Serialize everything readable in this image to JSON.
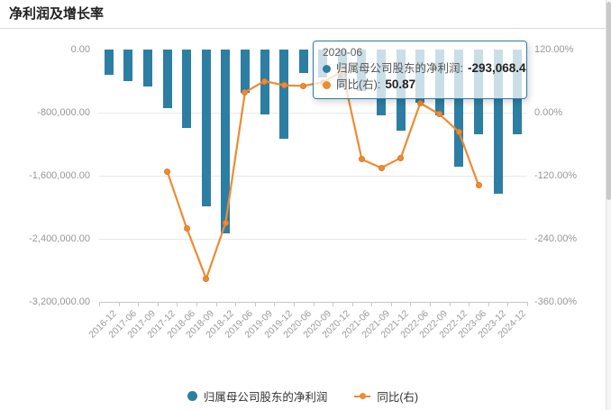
{
  "page": {
    "title": "净利润及增长率"
  },
  "colors": {
    "bar": "#2d7ea3",
    "line": "#ef8b31",
    "grid": "#e8e8e8",
    "axis": "#c9c9c9",
    "label": "#979797"
  },
  "tooltip": {
    "title": "2020-06",
    "rows": [
      {
        "color": "#2d7ea3",
        "label": "归属母公司股东的净利润:",
        "value": "-293,068.4"
      },
      {
        "color": "#ef8b31",
        "label": "同比(右):",
        "value": "50.87"
      }
    ]
  },
  "legend": [
    {
      "type": "bar",
      "color": "#2d7ea3",
      "label": "归属母公司股东的净利润"
    },
    {
      "type": "line",
      "color": "#ef8b31",
      "label": "同比(右)"
    }
  ],
  "chart_data": {
    "type": "bar",
    "title": "净利润及增长率",
    "categories": [
      "2016-12",
      "2017-06",
      "2017-09",
      "2017-12",
      "2018-06",
      "2018-09",
      "2018-12",
      "2019-06",
      "2019-09",
      "2019-12",
      "2020-06",
      "2020-09",
      "2020-12",
      "2021-06",
      "2021-09",
      "2021-12",
      "2022-06",
      "2022-09",
      "2022-12",
      "2023-06",
      "2023-12",
      "2024-12"
    ],
    "series": [
      {
        "name": "归属母公司股东的净利润",
        "type": "bar",
        "axis": "left",
        "color": "#2d7ea3",
        "values": [
          -322000,
          -400000,
          -465000,
          -745000,
          -995000,
          -1990000,
          -2335000,
          -553000,
          -820000,
          -1128000,
          -293068.4,
          -350000,
          -480000,
          -520000,
          -835000,
          -1030000,
          -671000,
          -835000,
          -1482000,
          -1074000,
          -1833000,
          -1074000
        ]
      },
      {
        "name": "同比(右)",
        "type": "line",
        "axis": "right",
        "color": "#ef8b31",
        "values": [
          null,
          null,
          null,
          -112,
          -220,
          -316,
          -210,
          39,
          60,
          52,
          50.87,
          58,
          79,
          -89,
          -105,
          -86,
          18,
          -3,
          -37,
          -138,
          null,
          null
        ]
      }
    ],
    "left_axis": {
      "ticks": [
        "0.00",
        "-800,000.00",
        "-1,600,000.00",
        "-2,400,000.00",
        "-3,200,000.00"
      ],
      "min": -3200000,
      "max": 0
    },
    "right_axis": {
      "ticks": [
        "120.00%",
        "0.00%",
        "-120.00%",
        "-240.00%",
        "-360.00%"
      ],
      "min": -360,
      "max": 120
    },
    "grid": true,
    "legend_position": "bottom"
  }
}
